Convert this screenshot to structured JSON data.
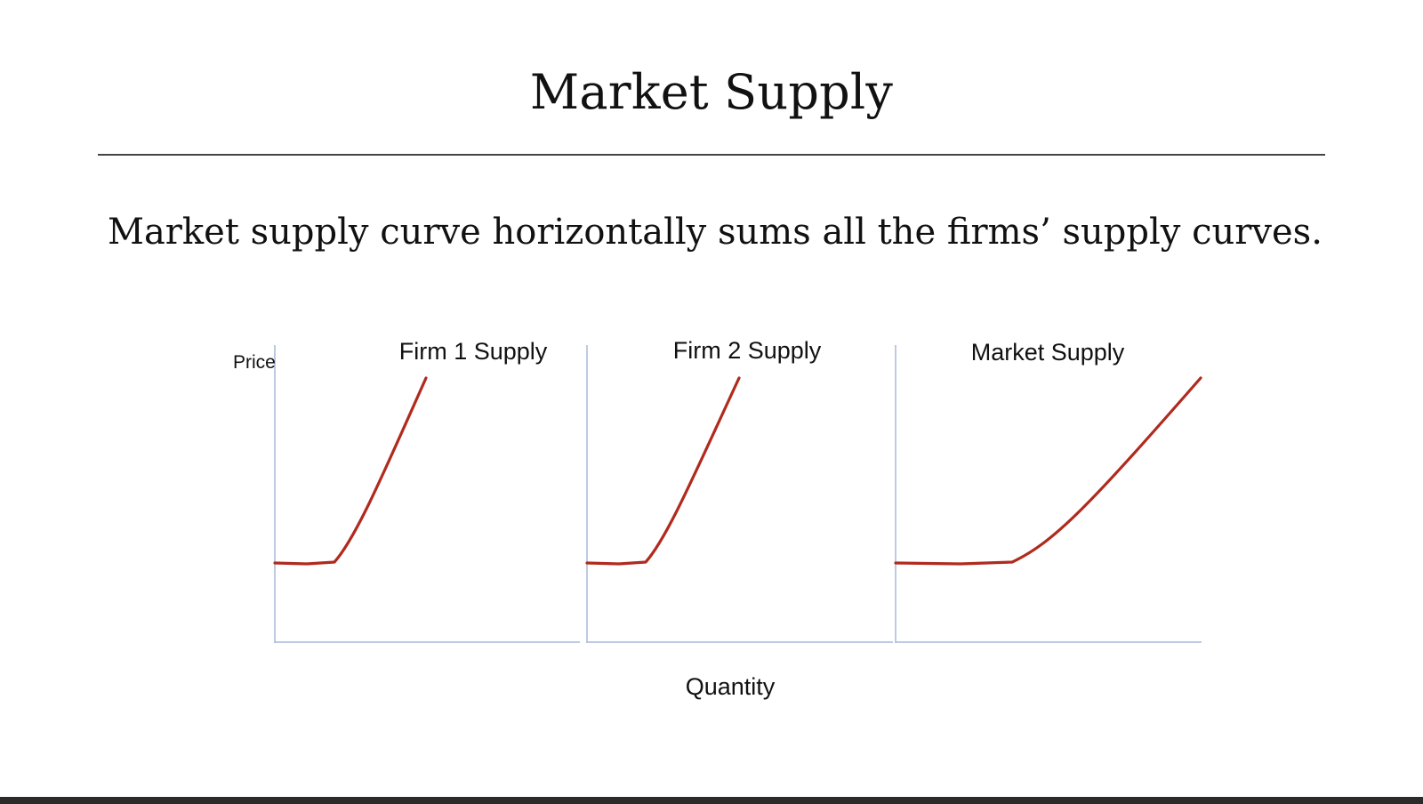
{
  "slide": {
    "title": "Market Supply",
    "body": "Market supply curve horizontally sums all the firms’ supply curves."
  },
  "diagram": {
    "y_axis_label": "Price",
    "x_axis_label": "Quantity",
    "panels": [
      {
        "title": "Firm 1 Supply"
      },
      {
        "title": "Firm 2 Supply"
      },
      {
        "title": "Market Supply"
      }
    ],
    "colors": {
      "curve": "#b02a1e",
      "axis": "#a9b8d8"
    }
  }
}
